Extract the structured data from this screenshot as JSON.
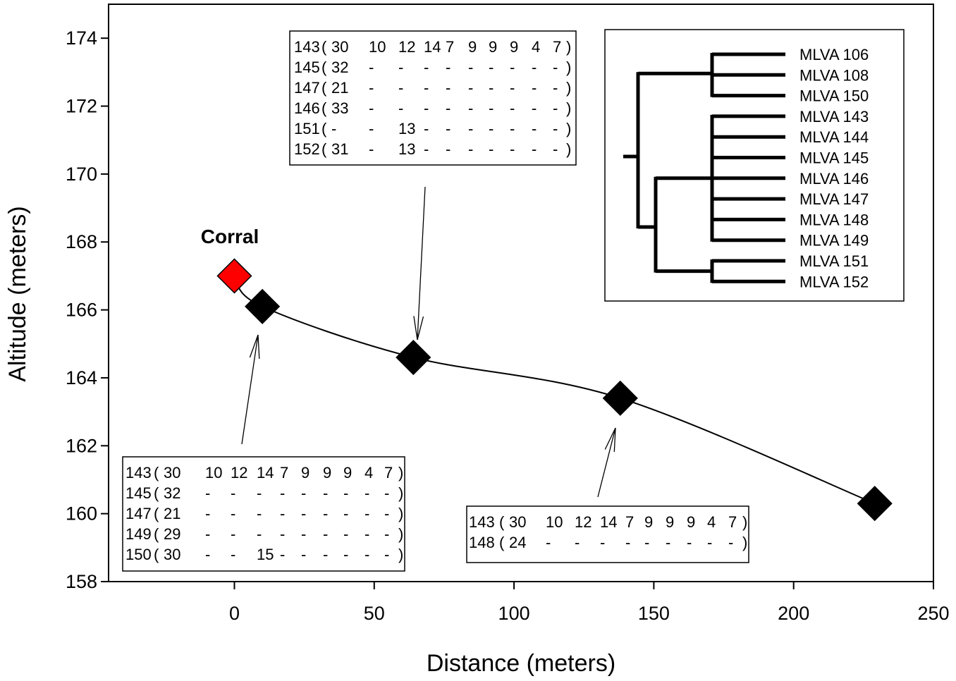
{
  "chart_data": {
    "type": "line",
    "title": "",
    "xlabel": "Distance (meters)",
    "ylabel": "Altitude (meters)",
    "xlim": [
      -45,
      250
    ],
    "ylim": [
      158,
      175
    ],
    "x_ticks": [
      0,
      50,
      100,
      150,
      200,
      250
    ],
    "y_ticks": [
      158,
      160,
      162,
      164,
      166,
      168,
      170,
      172,
      174
    ],
    "grid": false,
    "series": [
      {
        "points": [
          {
            "x": 0,
            "y": 167.0,
            "color": "#ff0000"
          },
          {
            "x": 10,
            "y": 166.1,
            "color": "#000000"
          },
          {
            "x": 64,
            "y": 164.6,
            "color": "#000000"
          },
          {
            "x": 138,
            "y": 163.4,
            "color": "#000000"
          },
          {
            "x": 229,
            "y": 160.3,
            "color": "#000000"
          }
        ]
      }
    ],
    "annotations": [
      {
        "text": "Corral",
        "x": 0,
        "y": 167.0
      }
    ],
    "haplotype_boxes": [
      {
        "point_index": 2,
        "rows": [
          {
            "id": "143",
            "cells": [
              "30",
              "10",
              "12",
              "14",
              "7",
              "9",
              "9",
              "9",
              "4",
              "7"
            ]
          },
          {
            "id": "145",
            "cells": [
              "32",
              "-",
              "-",
              "-",
              "-",
              "-",
              "-",
              "-",
              "-",
              "-"
            ]
          },
          {
            "id": "147",
            "cells": [
              "21",
              "-",
              "-",
              "-",
              "-",
              "-",
              "-",
              "-",
              "-",
              "-"
            ]
          },
          {
            "id": "146",
            "cells": [
              "33",
              "-",
              "-",
              "-",
              "-",
              "-",
              "-",
              "-",
              "-",
              "-"
            ]
          },
          {
            "id": "151",
            "cells": [
              "-",
              "-",
              "13",
              "-",
              "-",
              "-",
              "-",
              "-",
              "-",
              "-"
            ]
          },
          {
            "id": "152",
            "cells": [
              "31",
              "-",
              "13",
              "-",
              "-",
              "-",
              "-",
              "-",
              "-",
              "-"
            ]
          }
        ]
      },
      {
        "point_index": 1,
        "rows": [
          {
            "id": "143",
            "cells": [
              "30",
              "10",
              "12",
              "14",
              "7",
              "9",
              "9",
              "9",
              "4",
              "7"
            ]
          },
          {
            "id": "145",
            "cells": [
              "32",
              "-",
              "-",
              "-",
              "-",
              "-",
              "-",
              "-",
              "-",
              "-"
            ]
          },
          {
            "id": "147",
            "cells": [
              "21",
              "-",
              "-",
              "-",
              "-",
              "-",
              "-",
              "-",
              "-",
              "-"
            ]
          },
          {
            "id": "149",
            "cells": [
              "29",
              "-",
              "-",
              "-",
              "-",
              "-",
              "-",
              "-",
              "-",
              "-"
            ]
          },
          {
            "id": "150",
            "cells": [
              "30",
              "-",
              "-",
              "15",
              "-",
              "-",
              "-",
              "-",
              "-",
              "-"
            ]
          }
        ]
      },
      {
        "point_index": 3,
        "rows": [
          {
            "id": "143",
            "cells": [
              "30",
              "10",
              "12",
              "14",
              "7",
              "9",
              "9",
              "9",
              "4",
              "7"
            ]
          },
          {
            "id": "148",
            "cells": [
              "24",
              "-",
              "-",
              "-",
              "-",
              "-",
              "-",
              "-",
              "-",
              "-"
            ]
          }
        ]
      }
    ],
    "dendrogram": {
      "leaves": [
        "MLVA 106",
        "MLVA 108",
        "MLVA 150",
        "MLVA 143",
        "MLVA 144",
        "MLVA 145",
        "MLVA 146",
        "MLVA 147",
        "MLVA 148",
        "MLVA 149",
        "MLVA 151",
        "MLVA 152"
      ],
      "groups": [
        {
          "leaves": [
            0,
            1,
            2
          ]
        },
        {
          "leaves": [
            3,
            4,
            5,
            6,
            7,
            8,
            9
          ]
        },
        {
          "leaves": [
            10,
            11
          ]
        }
      ]
    }
  }
}
